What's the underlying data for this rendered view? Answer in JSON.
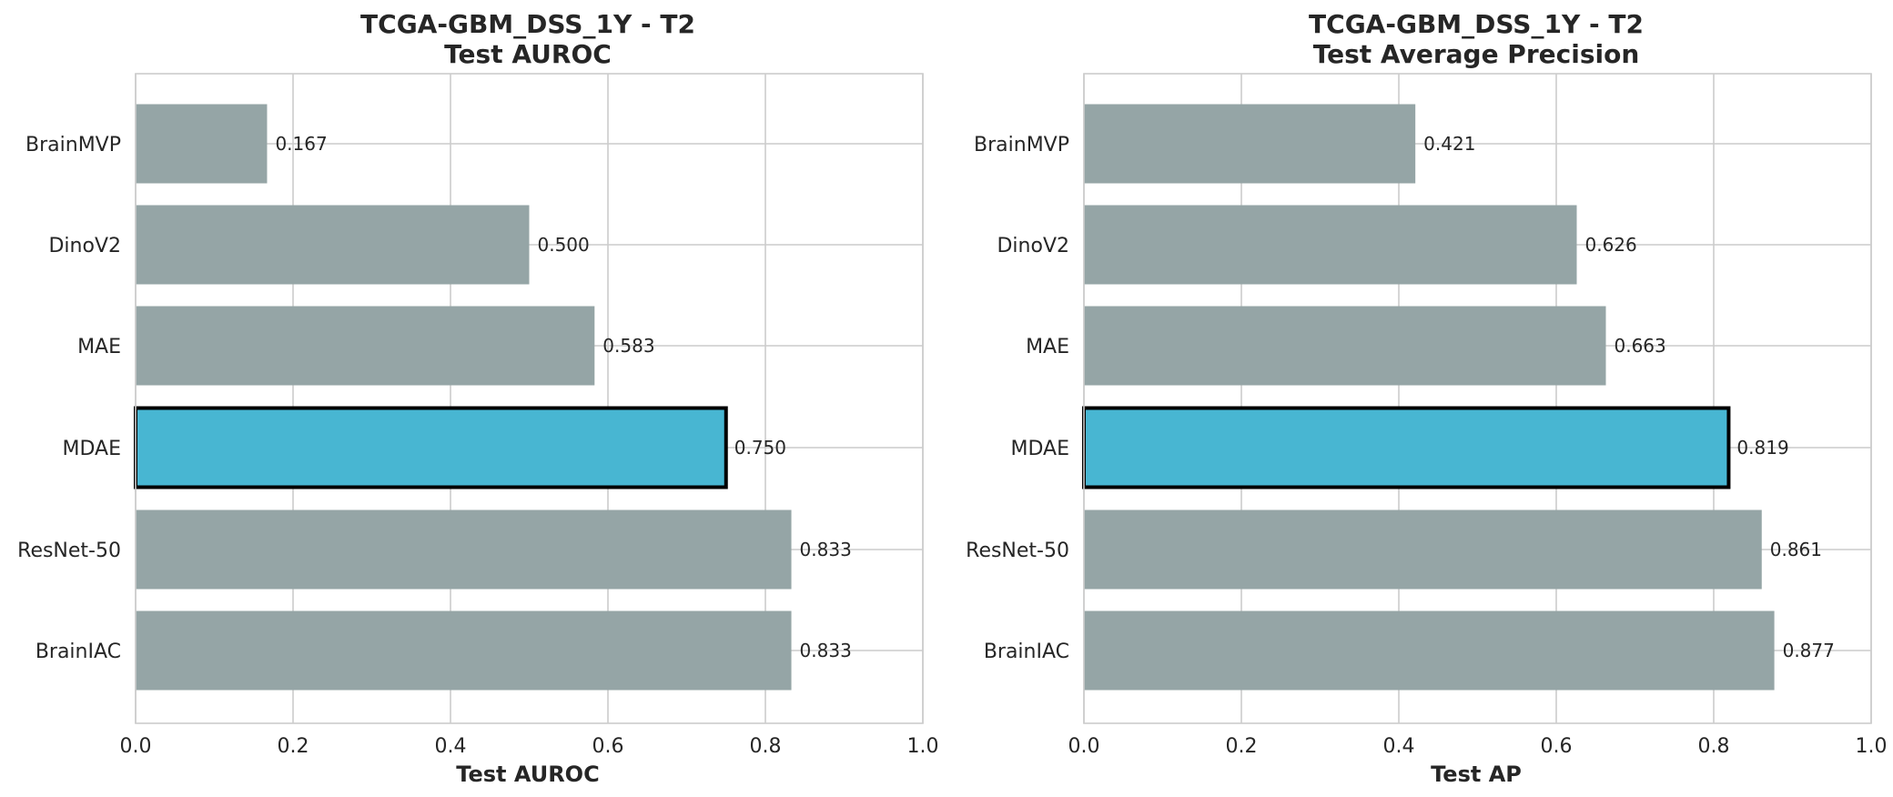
{
  "chart_data": [
    {
      "type": "bar",
      "orientation": "horizontal",
      "title_line1": "TCGA-GBM_DSS_1Y - T2",
      "title_line2": "Test AUROC",
      "xlabel": "Test AUROC",
      "ylabel": "",
      "xlim": [
        0,
        1.0
      ],
      "xticks": [
        "0.0",
        "0.2",
        "0.4",
        "0.6",
        "0.8",
        "1.0"
      ],
      "grid": true,
      "categories": [
        "BrainMVP",
        "DinoV2",
        "MAE",
        "MDAE",
        "ResNet-50",
        "BrainIAC"
      ],
      "values": [
        0.167,
        0.5,
        0.583,
        0.75,
        0.833,
        0.833
      ],
      "value_labels": [
        "0.167",
        "0.500",
        "0.583",
        "0.750",
        "0.833",
        "0.833"
      ],
      "highlight": "MDAE",
      "colors": {
        "default": "#95a5a6",
        "highlight": "#48b6d2",
        "highlight_edge": "#000000"
      }
    },
    {
      "type": "bar",
      "orientation": "horizontal",
      "title_line1": "TCGA-GBM_DSS_1Y - T2",
      "title_line2": "Test Average Precision",
      "xlabel": "Test AP",
      "ylabel": "",
      "xlim": [
        0,
        1.0
      ],
      "xticks": [
        "0.0",
        "0.2",
        "0.4",
        "0.6",
        "0.8",
        "1.0"
      ],
      "grid": true,
      "categories": [
        "BrainMVP",
        "DinoV2",
        "MAE",
        "MDAE",
        "ResNet-50",
        "BrainIAC"
      ],
      "values": [
        0.421,
        0.626,
        0.663,
        0.819,
        0.861,
        0.877
      ],
      "value_labels": [
        "0.421",
        "0.626",
        "0.663",
        "0.819",
        "0.861",
        "0.877"
      ],
      "highlight": "MDAE",
      "colors": {
        "default": "#95a5a6",
        "highlight": "#48b6d2",
        "highlight_edge": "#000000"
      }
    }
  ]
}
